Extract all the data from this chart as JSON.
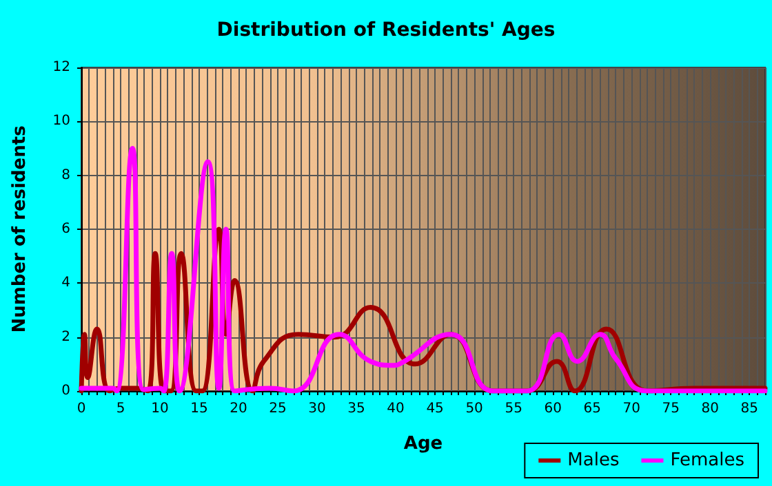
{
  "chart_data": {
    "type": "line",
    "title": "Distribution of Residents' Ages",
    "xlabel": "Age",
    "ylabel": "Number of residents",
    "xlim": [
      0,
      87
    ],
    "xticks": [
      0,
      5,
      10,
      15,
      20,
      25,
      30,
      35,
      40,
      45,
      50,
      55,
      60,
      65,
      70,
      75,
      80,
      85
    ],
    "ylim": [
      0,
      12
    ],
    "yticks": [
      0,
      2,
      4,
      6,
      8,
      10,
      12
    ],
    "grid": true,
    "legend": "bottom right",
    "marker": "none",
    "line_style": "solid",
    "series": [
      {
        "name": "Males",
        "color": "#a00000",
        "x": [
          0,
          0.4,
          0.8,
          2,
          3.6,
          5,
          7,
          8.5,
          9.4,
          10.5,
          11.4,
          12.7,
          14.6,
          15.4,
          17.5,
          18.4,
          19.5,
          21.8,
          23.2,
          27.6,
          32.2,
          36.8,
          42.5,
          47,
          52.4,
          56.7,
          60.5,
          62.8,
          66.8,
          72,
          78,
          87
        ],
        "values": [
          0,
          2.1,
          0.5,
          2.3,
          0,
          0.1,
          0.1,
          0,
          5.1,
          0,
          0,
          5.1,
          0,
          0,
          6,
          2.1,
          4.1,
          0,
          1.1,
          2.1,
          2,
          3.1,
          1,
          2.1,
          0,
          0,
          1.1,
          0,
          2.3,
          0,
          0.1,
          0.1
        ]
      },
      {
        "name": "Females",
        "color": "#ff00ff",
        "x": [
          0,
          4,
          4.5,
          6.5,
          7.9,
          10,
          10.5,
          11.5,
          12.5,
          16.1,
          17.5,
          18.4,
          19.5,
          24,
          27,
          32.8,
          36.8,
          39.7,
          40.8,
          47,
          52.4,
          56.7,
          60.8,
          63.1,
          66,
          68,
          72,
          87
        ],
        "values": [
          0.1,
          0.1,
          0,
          9,
          0.05,
          0.1,
          0,
          5.1,
          0,
          8.5,
          0.1,
          6,
          0,
          0.1,
          0,
          2.1,
          1.1,
          0.95,
          1.05,
          2.1,
          0,
          0,
          2.1,
          1.1,
          2.1,
          1.2,
          0,
          0
        ]
      }
    ]
  }
}
